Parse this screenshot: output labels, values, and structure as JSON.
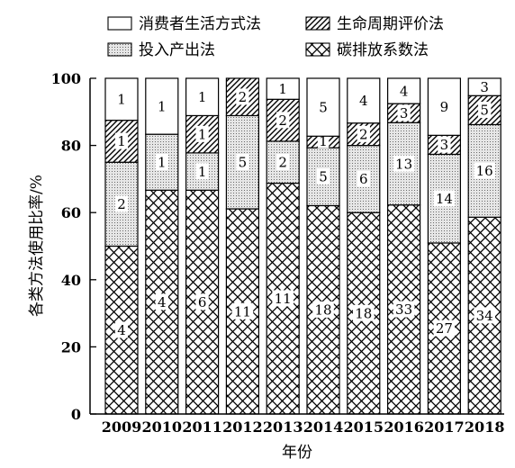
{
  "chart_data": {
    "type": "bar",
    "stacked": true,
    "normalized_percent": true,
    "xlabel": "年份",
    "ylabel": "各类方法使用比率/%",
    "ylim": [
      0,
      100
    ],
    "yticks": [
      0,
      20,
      40,
      60,
      80,
      100
    ],
    "legend_position": "top",
    "categories": [
      "2009",
      "2010",
      "2011",
      "2012",
      "2013",
      "2014",
      "2015",
      "2016",
      "2017",
      "2018"
    ],
    "series": [
      {
        "name": "碳排放系数法",
        "pattern": "crosshatch",
        "values": [
          4,
          4,
          6,
          11,
          11,
          18,
          18,
          33,
          27,
          34
        ]
      },
      {
        "name": "投入产出法",
        "pattern": "dots",
        "values": [
          2,
          1,
          1,
          5,
          2,
          5,
          6,
          13,
          14,
          16
        ]
      },
      {
        "name": "生命周期评价法",
        "pattern": "diagonal",
        "values": [
          1,
          0,
          1,
          2,
          2,
          1,
          2,
          3,
          3,
          5
        ]
      },
      {
        "name": "消费者生活方式法",
        "pattern": "blank",
        "values": [
          1,
          1,
          1,
          0,
          1,
          5,
          4,
          4,
          9,
          3
        ]
      }
    ],
    "legend_order": [
      "消费者生活方式法",
      "生命周期评价法",
      "投入产出法",
      "碳排放系数法"
    ]
  }
}
